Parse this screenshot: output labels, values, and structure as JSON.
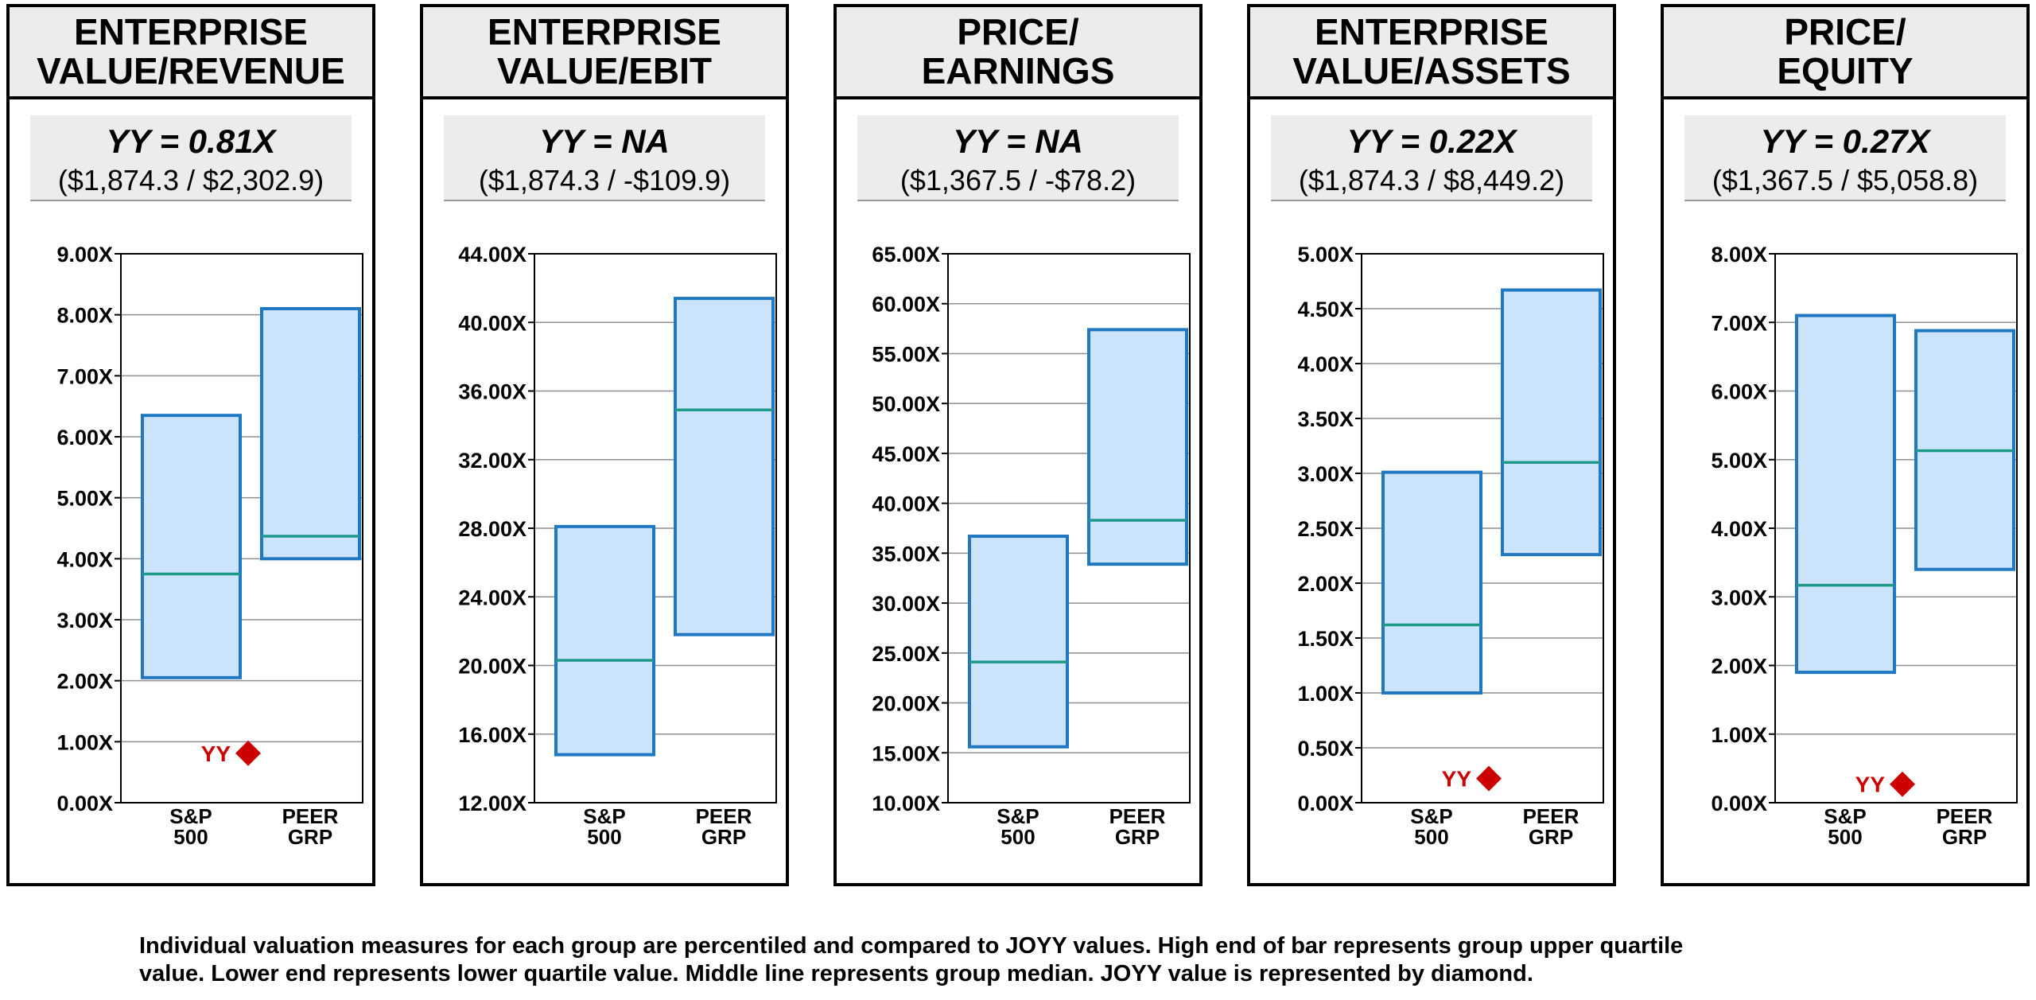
{
  "colors": {
    "box_fill": "#cce4fb",
    "box_stroke": "#1f78c1",
    "median": "#1f9a8a",
    "diamond": "#cc0000",
    "grid": "#8f8f8f"
  },
  "footnote": {
    "line1": "Individual valuation measures for each group are percentiled and compared to JOYY values. High end of bar represents group upper quartile",
    "line2": "value.  Lower end represents lower quartile value.  Middle line represents group median.  JOYY value is represented by diamond."
  },
  "panels": [
    {
      "title1": "ENTERPRISE",
      "title2": "VALUE/REVENUE",
      "yy_label": "YY = 0.81X",
      "ratio_label": "($1,874.3 / $2,302.9)",
      "chart_data": {
        "type": "box",
        "title": "ENTERPRISE VALUE/REVENUE",
        "ylim": [
          0,
          9
        ],
        "ystep": 1,
        "ticks": [
          "0.00X",
          "1.00X",
          "2.00X",
          "3.00X",
          "4.00X",
          "5.00X",
          "6.00X",
          "7.00X",
          "8.00X",
          "9.00X"
        ],
        "categories": [
          [
            "S&P",
            "500"
          ],
          [
            "PEER",
            "GRP"
          ]
        ],
        "boxes": [
          {
            "low": 2.05,
            "median": 3.75,
            "high": 6.35
          },
          {
            "low": 4.0,
            "median": 4.37,
            "high": 8.1
          }
        ],
        "marker": {
          "label": "YY",
          "value": 0.81
        }
      }
    },
    {
      "title1": "ENTERPRISE",
      "title2": "VALUE/EBIT",
      "yy_label": "YY = NA",
      "ratio_label": "($1,874.3 / -$109.9)",
      "chart_data": {
        "type": "box",
        "title": "ENTERPRISE VALUE/EBIT",
        "ylim": [
          12,
          44
        ],
        "ystep": 4,
        "ticks": [
          "12.00X",
          "16.00X",
          "20.00X",
          "24.00X",
          "28.00X",
          "32.00X",
          "36.00X",
          "40.00X",
          "44.00X"
        ],
        "categories": [
          [
            "S&P",
            "500"
          ],
          [
            "PEER",
            "GRP"
          ]
        ],
        "boxes": [
          {
            "low": 14.8,
            "median": 20.3,
            "high": 28.1
          },
          {
            "low": 21.8,
            "median": 34.9,
            "high": 41.4
          }
        ],
        "marker": null
      }
    },
    {
      "title1": "PRICE/",
      "title2": "EARNINGS",
      "yy_label": "YY = NA",
      "ratio_label": "($1,367.5 / -$78.2)",
      "chart_data": {
        "type": "box",
        "title": "PRICE/EARNINGS",
        "ylim": [
          10,
          65
        ],
        "ystep": 5,
        "ticks": [
          "10.00X",
          "15.00X",
          "20.00X",
          "25.00X",
          "30.00X",
          "35.00X",
          "40.00X",
          "45.00X",
          "50.00X",
          "55.00X",
          "60.00X",
          "65.00X"
        ],
        "categories": [
          [
            "S&P",
            "500"
          ],
          [
            "PEER",
            "GRP"
          ]
        ],
        "boxes": [
          {
            "low": 15.6,
            "median": 24.1,
            "high": 36.7
          },
          {
            "low": 33.9,
            "median": 38.3,
            "high": 57.4
          }
        ],
        "marker": null
      }
    },
    {
      "title1": "ENTERPRISE",
      "title2": "VALUE/ASSETS",
      "yy_label": "YY = 0.22X",
      "ratio_label": "($1,874.3 / $8,449.2)",
      "chart_data": {
        "type": "box",
        "title": "ENTERPRISE VALUE/ASSETS",
        "ylim": [
          0,
          5
        ],
        "ystep": 0.5,
        "ticks": [
          "0.00X",
          "0.50X",
          "1.00X",
          "1.50X",
          "2.00X",
          "2.50X",
          "3.00X",
          "3.50X",
          "4.00X",
          "4.50X",
          "5.00X"
        ],
        "categories": [
          [
            "S&P",
            "500"
          ],
          [
            "PEER",
            "GRP"
          ]
        ],
        "boxes": [
          {
            "low": 1.0,
            "median": 1.62,
            "high": 3.01
          },
          {
            "low": 2.26,
            "median": 3.1,
            "high": 4.67
          }
        ],
        "marker": {
          "label": "YY",
          "value": 0.22
        }
      }
    },
    {
      "title1": "PRICE/",
      "title2": "EQUITY",
      "yy_label": "YY = 0.27X",
      "ratio_label": "($1,367.5 / $5,058.8)",
      "chart_data": {
        "type": "box",
        "title": "PRICE/EQUITY",
        "ylim": [
          0,
          8
        ],
        "ystep": 1,
        "ticks": [
          "0.00X",
          "1.00X",
          "2.00X",
          "3.00X",
          "4.00X",
          "5.00X",
          "6.00X",
          "7.00X",
          "8.00X"
        ],
        "categories": [
          [
            "S&P",
            "500"
          ],
          [
            "PEER",
            "GRP"
          ]
        ],
        "boxes": [
          {
            "low": 1.9,
            "median": 3.17,
            "high": 7.1
          },
          {
            "low": 3.4,
            "median": 5.13,
            "high": 6.88
          }
        ],
        "marker": {
          "label": "YY",
          "value": 0.27
        }
      }
    }
  ]
}
